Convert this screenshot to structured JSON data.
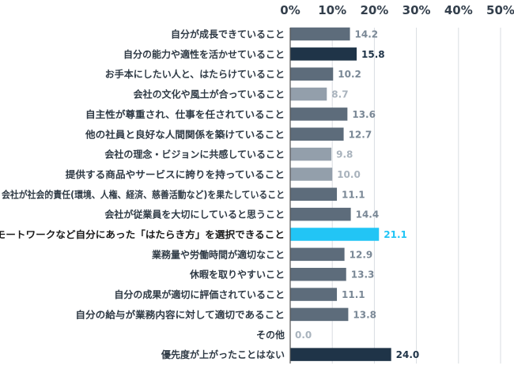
{
  "chart_data": {
    "type": "bar",
    "orientation": "horizontal",
    "title": "",
    "xlabel": "",
    "ylabel": "",
    "xlim": [
      0,
      50
    ],
    "ticks": [
      0,
      10,
      20,
      30,
      40,
      50
    ],
    "tick_suffix": "%",
    "grid": true,
    "categories": [
      "自分が成長できていること",
      "自分の能力や適性を活かせていること",
      "お手本にしたい人と、はたらけていること",
      "会社の文化や風土が合っていること",
      "自主性が尊重され、仕事を任されていること",
      "他の社員と良好な人間関係を築けていること",
      "会社の理念・ビジョンに共感していること",
      "提供する商品やサービスに誇りを持っていること",
      "会社が社会的責任(環境、人権、経済、慈善活動など)を果たしていること",
      "会社が従業員を大切にしていると思うこと",
      "リモートワークなど自分にあった「はたらき方」を選択できること",
      "業務量や労働時間が適切なこと",
      "休暇を取りやすいこと",
      "自分の成果が適切に評価されていること",
      "自分の給与が業務内容に対して適切であること",
      "その他",
      "優先度が上がったことはない"
    ],
    "values": [
      14.2,
      15.8,
      10.2,
      8.7,
      13.6,
      12.7,
      9.8,
      10.0,
      11.1,
      14.4,
      21.1,
      12.9,
      13.3,
      11.1,
      13.8,
      0.0,
      24.0
    ],
    "value_labels": [
      "14.2",
      "15.8",
      "10.2",
      "8.7",
      "13.6",
      "12.7",
      "9.8",
      "10.0",
      "11.1",
      "14.4",
      "21.1",
      "12.9",
      "13.3",
      "11.1",
      "13.8",
      "0.0",
      "24.0"
    ],
    "bar_colors": [
      "#5d6c7b",
      "#1f3448",
      "#5d6c7b",
      "#939fab",
      "#5d6c7b",
      "#5d6c7b",
      "#939fab",
      "#939fab",
      "#5d6c7b",
      "#5d6c7b",
      "#22c5f5",
      "#5d6c7b",
      "#5d6c7b",
      "#5d6c7b",
      "#5d6c7b",
      "#939fab",
      "#1f3448"
    ],
    "label_colors": [
      "#7a8896",
      "#1f3448",
      "#7a8896",
      "#a9b3bd",
      "#7a8896",
      "#7a8896",
      "#a9b3bd",
      "#a9b3bd",
      "#7a8896",
      "#7a8896",
      "#22c5f5",
      "#7a8896",
      "#7a8896",
      "#7a8896",
      "#7a8896",
      "#a9b3bd",
      "#1f3448"
    ],
    "highlight_index": 10,
    "grid_color": "#d9dde2",
    "axis_color": "#555555"
  }
}
